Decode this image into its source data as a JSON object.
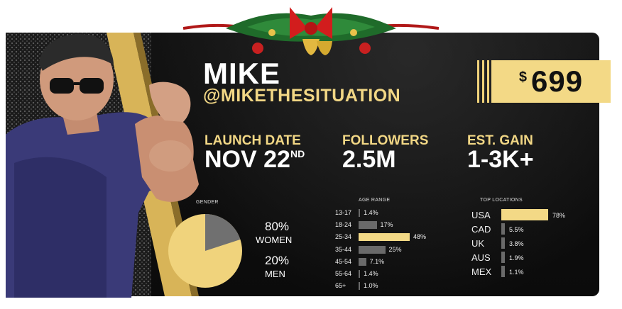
{
  "profile": {
    "name": "MIKE",
    "handle": "@MIKETHESITUATION"
  },
  "price": {
    "currency": "$",
    "amount": "699"
  },
  "stats": [
    {
      "label": "LAUNCH DATE",
      "value": "NOV 22",
      "suffix": "ND"
    },
    {
      "label": "FOLLOWERS",
      "value": "2.5M"
    },
    {
      "label": "EST. GAIN",
      "value": "1-3K+"
    }
  ],
  "gender": {
    "title": "GENDER",
    "women_pct": "80%",
    "women_label": "WOMEN",
    "men_pct": "20%",
    "men_label": "MEN",
    "women_fraction": 0.8
  },
  "age_range": {
    "title": "AGE RANGE",
    "rows": [
      {
        "label": "13-17",
        "pct": "1.4%",
        "value": 1.4
      },
      {
        "label": "18-24",
        "pct": "17%",
        "value": 17
      },
      {
        "label": "25-34",
        "pct": "48%",
        "value": 48
      },
      {
        "label": "35-44",
        "pct": "25%",
        "value": 25
      },
      {
        "label": "45-54",
        "pct": "7.1%",
        "value": 7.1
      },
      {
        "label": "55-64",
        "pct": "1.4%",
        "value": 1.4
      },
      {
        "label": "65+",
        "pct": "1.0%",
        "value": 1.0
      }
    ]
  },
  "top_locations": {
    "title": "TOP LOCATIONS",
    "rows": [
      {
        "label": "USA",
        "pct": "78%",
        "value": 78
      },
      {
        "label": "CAD",
        "pct": "5.5%",
        "value": 5.5
      },
      {
        "label": "UK",
        "pct": "3.8%",
        "value": 3.8
      },
      {
        "label": "AUS",
        "pct": "1.9%",
        "value": 1.9
      },
      {
        "label": "MEX",
        "pct": "1.1%",
        "value": 1.1
      }
    ]
  },
  "colors": {
    "gold": "#f3d986",
    "gray": "#6a6a6a",
    "card": "#0f0f0f"
  }
}
